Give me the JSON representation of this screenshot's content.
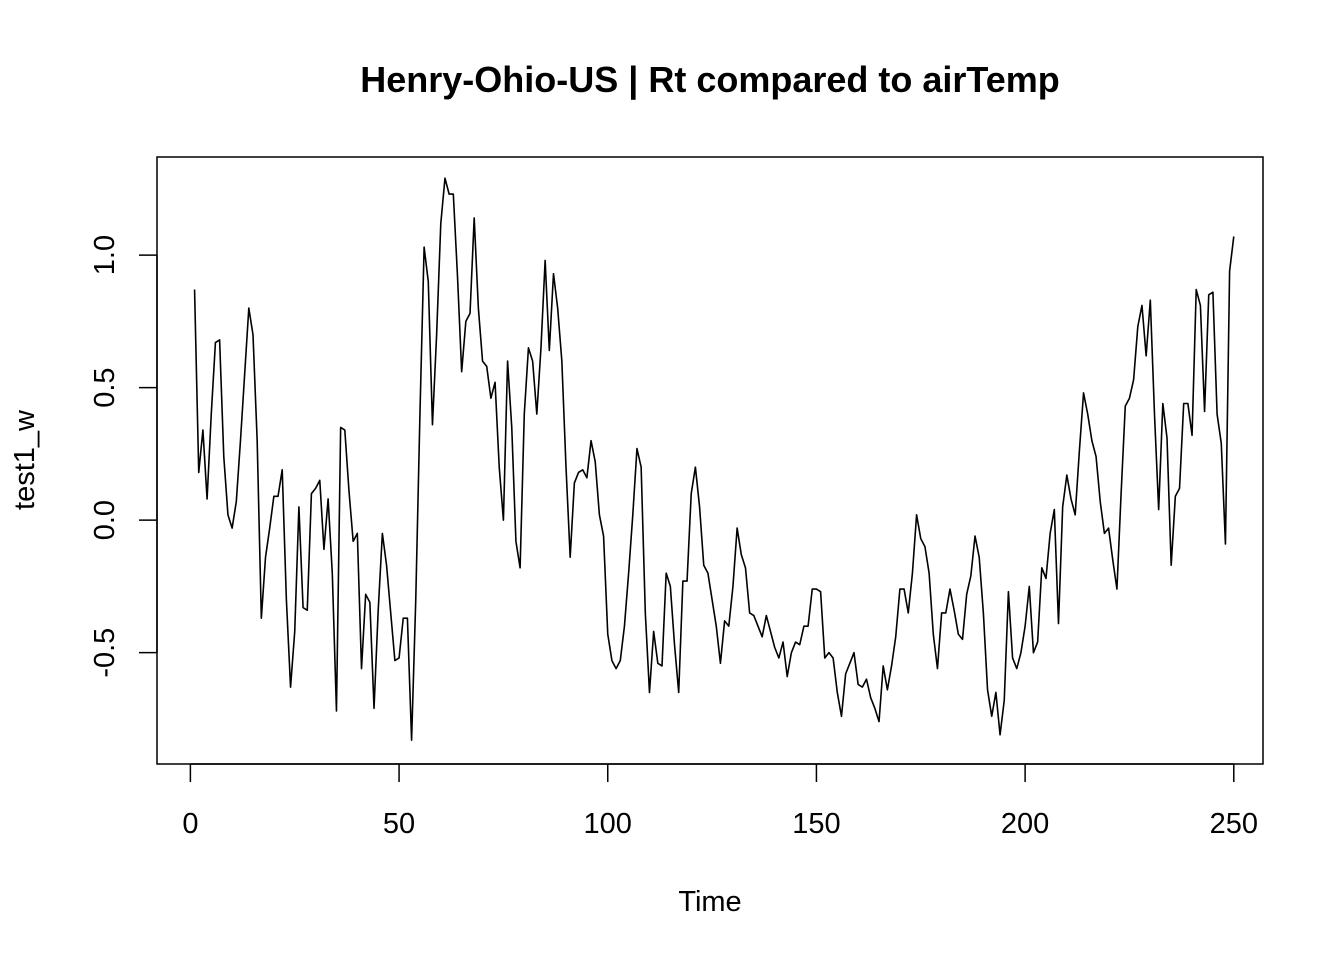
{
  "chart_data": {
    "type": "line",
    "title": "Henry-Ohio-US | Rt compared to airTemp",
    "xlabel": "Time",
    "ylabel": "test1_w",
    "xlim": [
      -8,
      257
    ],
    "ylim": [
      -0.92,
      1.37
    ],
    "x_ticks": [
      0,
      50,
      100,
      150,
      200,
      250
    ],
    "y_ticks": [
      -0.5,
      0.0,
      0.5,
      1.0
    ],
    "x_tick_labels": [
      "0",
      "50",
      "100",
      "150",
      "200",
      "250"
    ],
    "y_tick_labels": [
      "-0.5",
      "0.0",
      "0.5",
      "1.0"
    ],
    "grid": false,
    "series": [
      {
        "color": "#000000",
        "x_start": 1,
        "x_step": 1,
        "values": [
          0.87,
          0.18,
          0.34,
          0.08,
          0.4,
          0.67,
          0.68,
          0.24,
          0.02,
          -0.03,
          0.07,
          0.3,
          0.55,
          0.8,
          0.7,
          0.3,
          -0.37,
          -0.14,
          -0.03,
          0.09,
          0.09,
          0.19,
          -0.3,
          -0.63,
          -0.42,
          0.05,
          -0.33,
          -0.34,
          0.1,
          0.12,
          0.15,
          -0.11,
          0.08,
          -0.2,
          -0.72,
          0.35,
          0.34,
          0.11,
          -0.08,
          -0.05,
          -0.56,
          -0.28,
          -0.31,
          -0.71,
          -0.34,
          -0.05,
          -0.17,
          -0.35,
          -0.53,
          -0.52,
          -0.37,
          -0.37,
          -0.83,
          -0.3,
          0.4,
          1.03,
          0.9,
          0.36,
          0.7,
          1.12,
          1.29,
          1.23,
          1.23,
          0.92,
          0.56,
          0.75,
          0.78,
          1.14,
          0.8,
          0.6,
          0.58,
          0.46,
          0.52,
          0.2,
          0.0,
          0.6,
          0.35,
          -0.08,
          -0.18,
          0.4,
          0.65,
          0.6,
          0.4,
          0.65,
          0.98,
          0.64,
          0.93,
          0.8,
          0.6,
          0.2,
          -0.14,
          0.14,
          0.18,
          0.19,
          0.16,
          0.3,
          0.22,
          0.02,
          -0.06,
          -0.43,
          -0.53,
          -0.56,
          -0.53,
          -0.4,
          -0.2,
          0.02,
          0.27,
          0.2,
          -0.35,
          -0.65,
          -0.42,
          -0.54,
          -0.55,
          -0.2,
          -0.25,
          -0.47,
          -0.65,
          -0.23,
          -0.23,
          0.1,
          0.2,
          0.05,
          -0.17,
          -0.2,
          -0.3,
          -0.4,
          -0.54,
          -0.38,
          -0.4,
          -0.25,
          -0.03,
          -0.13,
          -0.18,
          -0.35,
          -0.36,
          -0.4,
          -0.44,
          -0.36,
          -0.42,
          -0.48,
          -0.52,
          -0.46,
          -0.59,
          -0.5,
          -0.46,
          -0.47,
          -0.4,
          -0.4,
          -0.26,
          -0.26,
          -0.27,
          -0.52,
          -0.5,
          -0.52,
          -0.65,
          -0.74,
          -0.58,
          -0.54,
          -0.5,
          -0.62,
          -0.63,
          -0.6,
          -0.67,
          -0.71,
          -0.76,
          -0.55,
          -0.64,
          -0.55,
          -0.44,
          -0.26,
          -0.26,
          -0.35,
          -0.2,
          0.02,
          -0.07,
          -0.1,
          -0.2,
          -0.43,
          -0.56,
          -0.35,
          -0.35,
          -0.26,
          -0.34,
          -0.43,
          -0.45,
          -0.28,
          -0.21,
          -0.06,
          -0.14,
          -0.35,
          -0.64,
          -0.74,
          -0.65,
          -0.81,
          -0.68,
          -0.27,
          -0.52,
          -0.56,
          -0.5,
          -0.4,
          -0.25,
          -0.5,
          -0.46,
          -0.18,
          -0.22,
          -0.05,
          0.04,
          -0.39,
          0.05,
          0.17,
          0.08,
          0.02,
          0.26,
          0.48,
          0.4,
          0.3,
          0.24,
          0.07,
          -0.05,
          -0.03,
          -0.15,
          -0.26,
          0.1,
          0.43,
          0.46,
          0.53,
          0.73,
          0.81,
          0.62,
          0.83,
          0.4,
          0.04,
          0.44,
          0.31,
          -0.17,
          0.09,
          0.12,
          0.44,
          0.44,
          0.32,
          0.87,
          0.81,
          0.41,
          0.85,
          0.86,
          0.4,
          0.29,
          -0.09,
          0.94,
          1.07
        ]
      }
    ]
  }
}
